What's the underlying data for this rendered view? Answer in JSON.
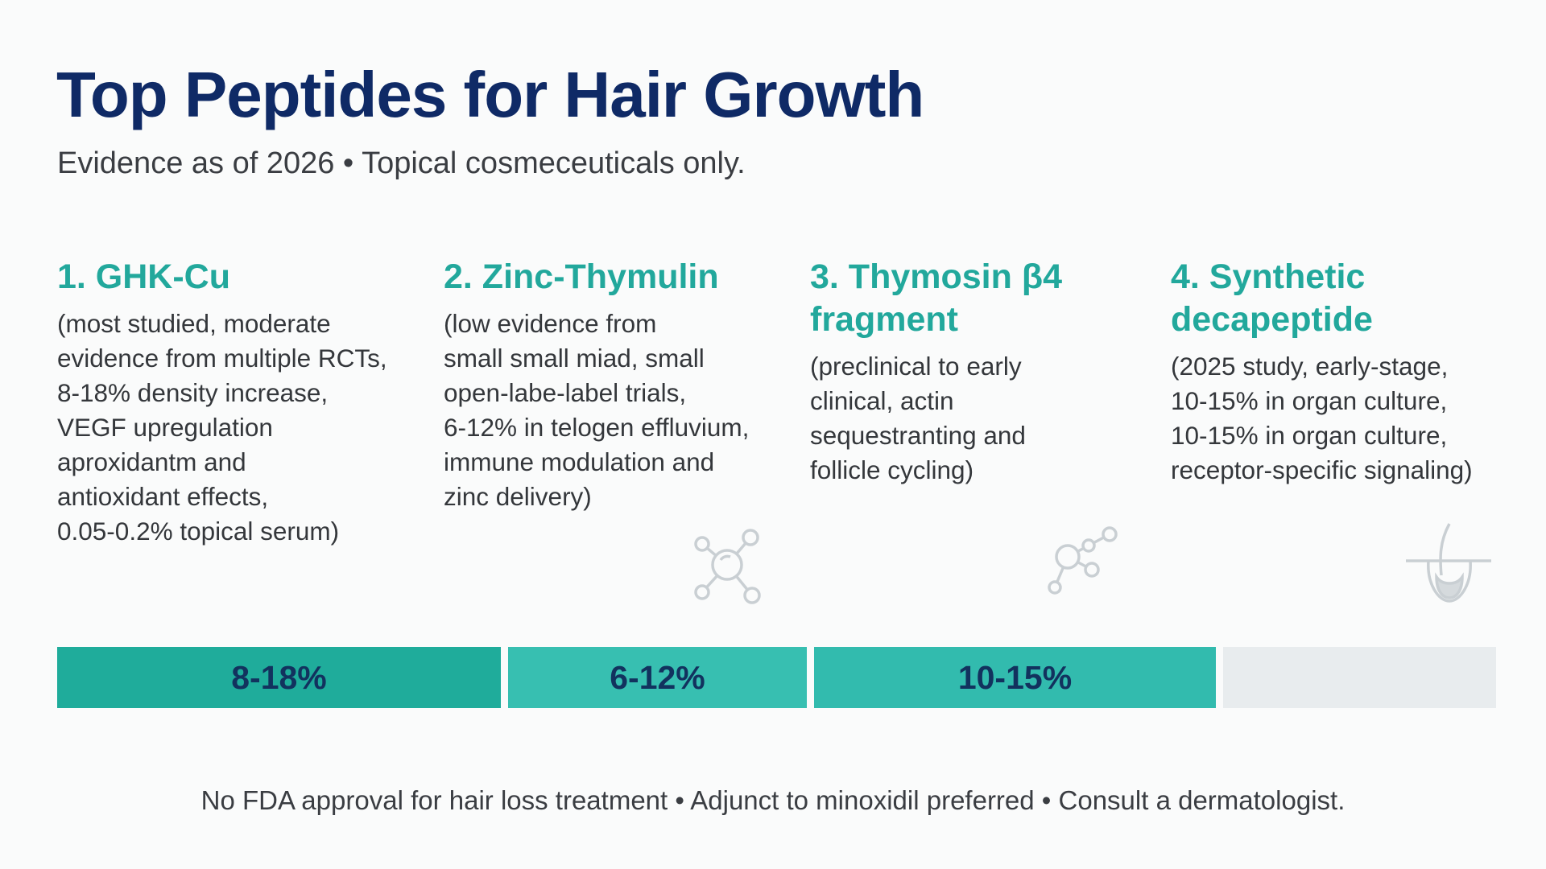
{
  "header": {
    "title": "Top Peptides for Hair Growth",
    "subtitle": "Evidence as of 2026 • Topical cosmeceuticals only."
  },
  "peptides": [
    {
      "title_lines": [
        "1. GHK-Cu"
      ],
      "description_lines": [
        "(most studied, moderate",
        "evidence from multiple RCTs,",
        "8-18% density increase,",
        "VEGF upregulation",
        "aproxidantm and",
        "antioxidant effects,",
        "0.05-0.2% topical serum)"
      ]
    },
    {
      "title_lines": [
        "2. Zinc-Thymulin"
      ],
      "description_lines": [
        "(low evidence from",
        "small small miad, small",
        "open-labe-label trials,",
        "6-12% in telogen effluvium,",
        "immune modulation and",
        "zinc delivery)"
      ]
    },
    {
      "title_lines": [
        "3. Thymosin β4",
        "fragment"
      ],
      "description_lines": [
        "(preclinical to early",
        "clinical, actin",
        "sequestranting and",
        "follicle cycling)"
      ]
    },
    {
      "title_lines": [
        "4. Synthetic",
        "decapeptide"
      ],
      "description_lines": [
        "(2025 study, early-stage,",
        "10-15% in organ culture,",
        "10-15% in organ culture,",
        "receptor-specific signaling)"
      ]
    }
  ],
  "icons": [
    "molecule-icon",
    "molecule-chain-icon",
    "hair-follicle-icon"
  ],
  "bars": [
    {
      "label": "8-18%",
      "color": "#1fac9b"
    },
    {
      "label": "6-12%",
      "color": "#37bfb1"
    },
    {
      "label": "10-15%",
      "color": "#32bbae"
    },
    {
      "label": "",
      "color": "#e8ecee"
    }
  ],
  "footer": "No FDA approval for hair loss treatment • Adjunct to minoxidil preferred • Consult a dermatologist."
}
